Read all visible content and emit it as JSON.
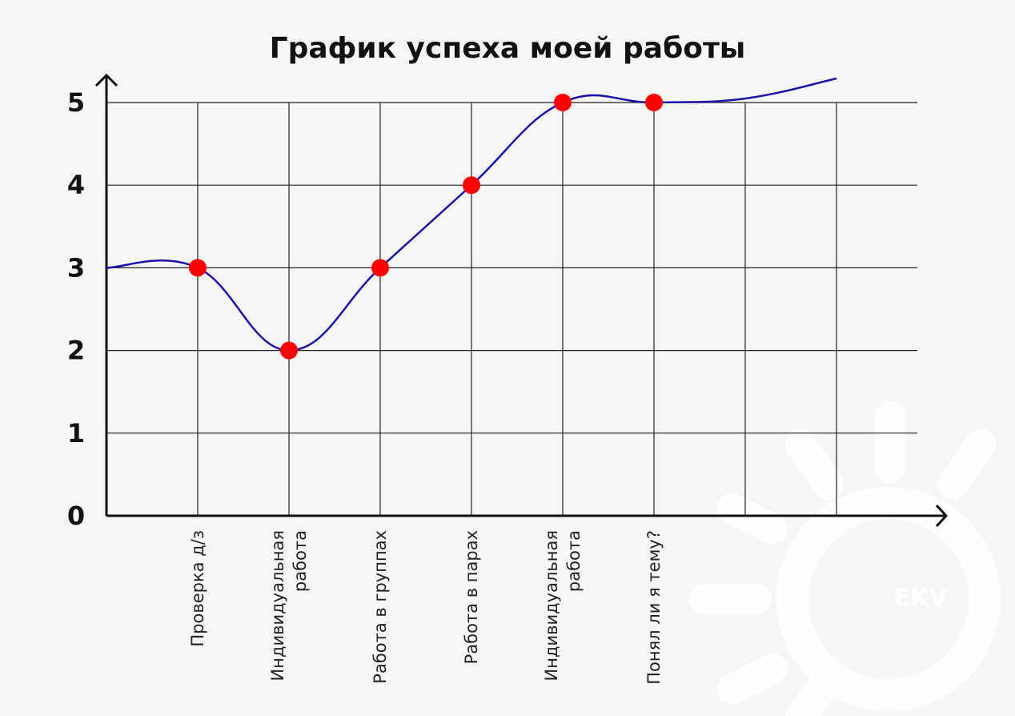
{
  "chart_data": {
    "type": "line",
    "title": "График успеха моей работы",
    "xlabel": "",
    "ylabel": "",
    "ylim": [
      0,
      5
    ],
    "yticks": [
      "0",
      "1",
      "2",
      "3",
      "4",
      "5"
    ],
    "categories": [
      "Проверка д/з",
      "Индивидуальная\nработа",
      "Работа в группах",
      "Работа в парах",
      "Индивидуальная\nработа",
      "Понял ли я тему?"
    ],
    "values": [
      3,
      2,
      3,
      4,
      5,
      5
    ],
    "grid": true,
    "series_color": "#1a12a8",
    "marker_color": "#ff0000"
  },
  "watermark": {
    "text": "EKV"
  }
}
